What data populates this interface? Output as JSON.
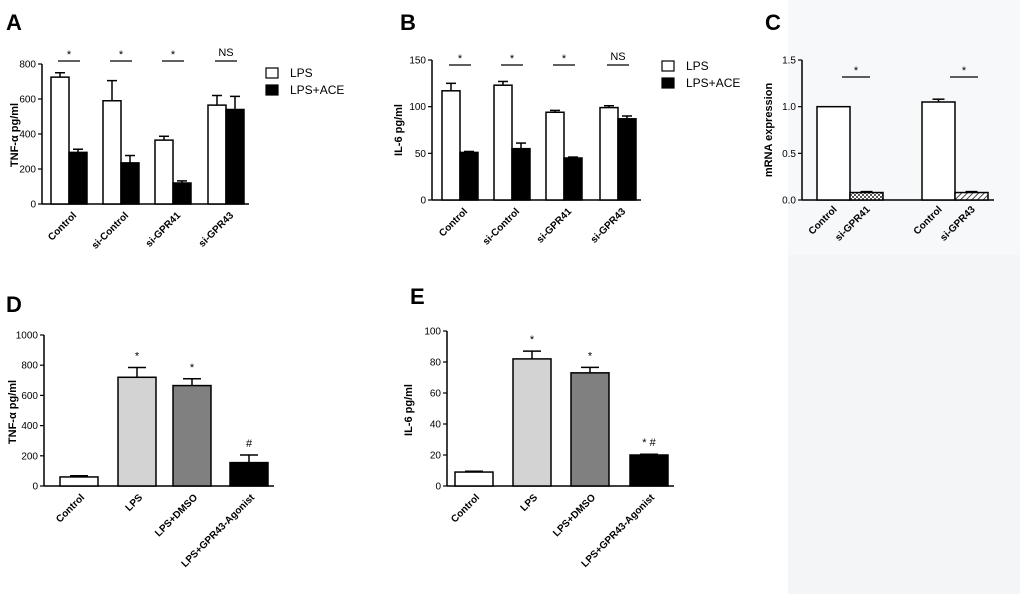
{
  "figure": {
    "panels": [
      "A",
      "B",
      "C",
      "D",
      "E"
    ]
  },
  "chart_data": [
    {
      "id": "A",
      "type": "bar",
      "ylabel": "TNF-α  pg/ml",
      "ylim": [
        0,
        800
      ],
      "yticks": [
        0,
        200,
        400,
        600,
        800
      ],
      "categories": [
        "Control",
        "si-Control",
        "si-GPR41",
        "si-GPR43"
      ],
      "series": [
        {
          "name": "LPS",
          "color": "#ffffff",
          "values": [
            725,
            590,
            365,
            565
          ],
          "errors": [
            25,
            115,
            22,
            55
          ]
        },
        {
          "name": "LPS+ACE",
          "color": "#000000",
          "values": [
            295,
            235,
            120,
            540
          ],
          "errors": [
            18,
            42,
            12,
            75
          ]
        }
      ],
      "significance": [
        "*",
        "*",
        "*",
        "NS"
      ],
      "legend": [
        "LPS",
        "LPS+ACE"
      ]
    },
    {
      "id": "B",
      "type": "bar",
      "ylabel": "IL-6  pg/ml",
      "ylim": [
        0,
        150
      ],
      "yticks": [
        0,
        50,
        100,
        150
      ],
      "categories": [
        "Control",
        "si-Control",
        "si-GPR41",
        "si-GPR43"
      ],
      "series": [
        {
          "name": "LPS",
          "color": "#ffffff",
          "values": [
            117,
            123,
            94,
            99
          ],
          "errors": [
            8,
            4,
            2,
            2
          ]
        },
        {
          "name": "LPS+ACE",
          "color": "#000000",
          "values": [
            51,
            55,
            45,
            87
          ],
          "errors": [
            1,
            6,
            1,
            3
          ]
        }
      ],
      "significance": [
        "*",
        "*",
        "*",
        "NS"
      ],
      "legend": [
        "LPS",
        "LPS+ACE"
      ]
    },
    {
      "id": "C",
      "type": "bar",
      "ylabel": "mRNA expression",
      "ylim": [
        0,
        1.5
      ],
      "yticks": [
        "0.0",
        "0.5",
        "1.0",
        "1.5"
      ],
      "categories": [
        "Control",
        "si-GPR41",
        "Control",
        "si-GPR43"
      ],
      "values": [
        1.0,
        0.08,
        1.05,
        0.08
      ],
      "errors": [
        0,
        0.01,
        0.03,
        0.01
      ],
      "fills": [
        "white",
        "checker",
        "white",
        "hatch"
      ],
      "significance": [
        "*",
        "*"
      ]
    },
    {
      "id": "D",
      "type": "bar",
      "ylabel": "TNF-α  pg/ml",
      "ylim": [
        0,
        1000
      ],
      "yticks": [
        0,
        200,
        400,
        600,
        800,
        1000
      ],
      "categories": [
        "Control",
        "LPS",
        "LPS+DMSO",
        "LPS+GPR43-Agonist"
      ],
      "values": [
        60,
        720,
        665,
        155
      ],
      "errors": [
        8,
        65,
        45,
        50
      ],
      "colors": [
        "#ffffff",
        "#d3d3d3",
        "#808080",
        "#000000"
      ],
      "annotations": [
        "",
        "*",
        "*",
        "#"
      ]
    },
    {
      "id": "E",
      "type": "bar",
      "ylabel": "IL-6  pg/ml",
      "ylim": [
        0,
        100
      ],
      "yticks": [
        0,
        20,
        40,
        60,
        80,
        100
      ],
      "categories": [
        "Control",
        "LPS",
        "LPS+DMSO",
        "LPS+GPR43-Agonist"
      ],
      "values": [
        9,
        82,
        73,
        20
      ],
      "errors": [
        0.5,
        5,
        3.5,
        0.5
      ],
      "colors": [
        "#ffffff",
        "#d3d3d3",
        "#808080",
        "#000000"
      ],
      "annotations": [
        "",
        "*",
        "*",
        "* #"
      ]
    }
  ]
}
